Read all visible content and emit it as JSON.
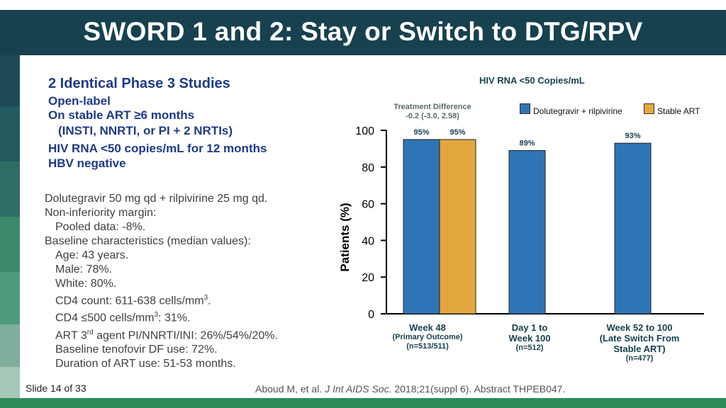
{
  "title": "SWORD 1 and 2: Stay or Switch to DTG/RPV",
  "colors": {
    "title_bar": "#17414f",
    "stripes": [
      "#1d4a56",
      "#235a5f",
      "#2e6d64",
      "#3d8a6a",
      "#4f9a7a",
      "#7fae9c",
      "#a7c7b8"
    ],
    "dtg_rpv": "#2e75b6",
    "stable_art": "#e3a73e",
    "heading_text": "#1f3a8a",
    "bottom_bar": "#2f8a5a"
  },
  "summary": {
    "heading": "2 Identical Phase 3 Studies",
    "lines": [
      "Open-label",
      "On stable ART ≥6 months",
      "(INSTI, NNRTI, or PI + 2 NRTIs)",
      "HIV RNA <50 copies/mL for 12 months",
      "HBV negative"
    ]
  },
  "design": {
    "regimen": "Dolutegravir 50 mg qd + rilpivirine 25 mg qd.",
    "margin_label": "Non-inferiority margin:",
    "margin_value": "Pooled data: -8%.",
    "baseline_label": "Baseline characteristics (median values):",
    "age": "Age: 43 years.",
    "male": "Male: 78%.",
    "white": "White: 80%.",
    "cd4_prefix": "CD4 count: 611-638 cells/mm",
    "cd4_sup": "3",
    "cd4_suffix": ".",
    "cd4_low_prefix": "CD4 ≤500 cells/mm",
    "cd4_low_sup": "3",
    "cd4_low_suffix": ": 31%.",
    "art_prefix": "ART 3",
    "art_sup": "rd",
    "art_suffix": " agent PI/NNRTI/INI: 26%/54%/20%.",
    "tenofovir": "Baseline tenofovir DF use: 72%.",
    "duration": "Duration of ART use: 51-53 months."
  },
  "footer": {
    "slide": "Slide 14 of 33",
    "citation_authors": "Aboud M, et al. ",
    "citation_journal": "J Int AIDS Soc.",
    "citation_rest": " 2018;21(suppl 6). Abstract THPEB047."
  },
  "chart_data": {
    "type": "bar",
    "title": "HIV RNA <50 Copies/mL",
    "treatment_difference_label": "Treatment Difference",
    "treatment_difference_value": "-0.2 (-3.0, 2.58)",
    "ylabel": "Patients (%)",
    "ylim": [
      0,
      100
    ],
    "yticks": [
      0,
      20,
      40,
      60,
      80,
      100
    ],
    "legend": [
      "Dolutegravir + rilpivirine",
      "Stable ART"
    ],
    "categories": [
      {
        "line1": "Week 48",
        "line2": "(Primary Outcome)",
        "line3": "(n=513/511)"
      },
      {
        "line1": "Day 1 to",
        "line2": "Week 100",
        "line3": "(n=512)"
      },
      {
        "line1": "Week 52 to 100",
        "line2": "(Late Switch From",
        "line3": "Stable ART)",
        "line4": "(n=477)"
      }
    ],
    "bars": [
      {
        "group": 0,
        "series": 0,
        "value": 95,
        "label": "95%"
      },
      {
        "group": 0,
        "series": 1,
        "value": 95,
        "label": "95%"
      },
      {
        "group": 1,
        "series": 0,
        "value": 89,
        "label": "89%"
      },
      {
        "group": 2,
        "series": 0,
        "value": 93,
        "label": "93%"
      }
    ]
  }
}
